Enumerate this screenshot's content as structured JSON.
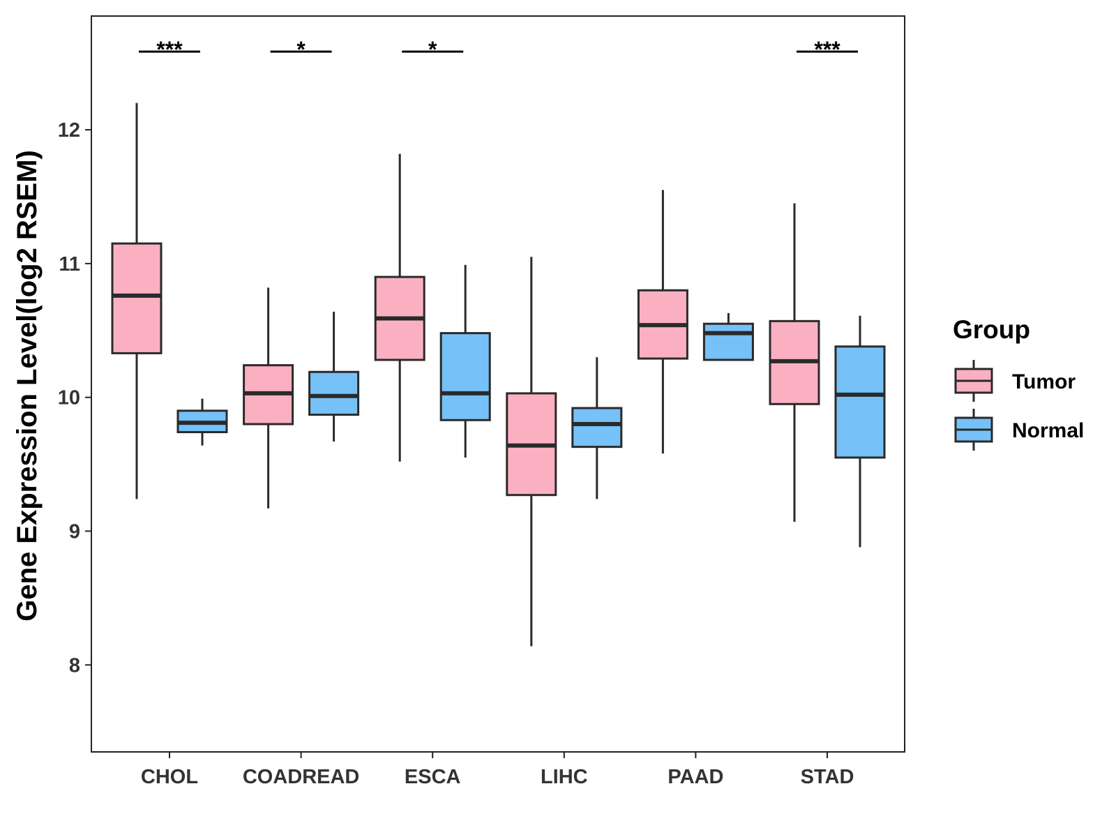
{
  "chart_data": {
    "type": "boxplot",
    "title": "",
    "xlabel": "",
    "ylabel": "Gene Expression Level(log2 RSEM)",
    "ylim": [
      7.35,
      12.85
    ],
    "yticks": [
      8,
      9,
      10,
      11,
      12
    ],
    "categories": [
      "CHOL",
      "COADREAD",
      "ESCA",
      "LIHC",
      "PAAD",
      "STAD"
    ],
    "legend": {
      "title": "Group",
      "position": "right",
      "items": [
        {
          "name": "Tumor",
          "color": "#FBB0C2"
        },
        {
          "name": "Normal",
          "color": "#76C1F8"
        }
      ]
    },
    "series": [
      {
        "name": "Tumor",
        "color": "#FBB0C2",
        "boxes": [
          {
            "min": 9.24,
            "q1": 10.33,
            "median": 10.76,
            "q3": 11.15,
            "max": 12.2
          },
          {
            "min": 9.17,
            "q1": 9.8,
            "median": 10.03,
            "q3": 10.24,
            "max": 10.82
          },
          {
            "min": 9.52,
            "q1": 10.28,
            "median": 10.59,
            "q3": 10.9,
            "max": 11.82
          },
          {
            "min": 8.14,
            "q1": 9.27,
            "median": 9.64,
            "q3": 10.03,
            "max": 11.05
          },
          {
            "min": 9.58,
            "q1": 10.29,
            "median": 10.54,
            "q3": 10.8,
            "max": 11.55
          },
          {
            "min": 9.07,
            "q1": 9.95,
            "median": 10.27,
            "q3": 10.57,
            "max": 11.45
          }
        ]
      },
      {
        "name": "Normal",
        "color": "#76C1F8",
        "boxes": [
          {
            "min": 9.64,
            "q1": 9.74,
            "median": 9.81,
            "q3": 9.9,
            "max": 9.99
          },
          {
            "min": 9.67,
            "q1": 9.87,
            "median": 10.01,
            "q3": 10.19,
            "max": 10.64
          },
          {
            "min": 9.55,
            "q1": 9.83,
            "median": 10.03,
            "q3": 10.48,
            "max": 10.99
          },
          {
            "min": 9.24,
            "q1": 9.63,
            "median": 9.8,
            "q3": 9.92,
            "max": 10.3
          },
          {
            "min": 10.28,
            "q1": 10.28,
            "median": 10.48,
            "q3": 10.55,
            "max": 10.63
          },
          {
            "min": 8.88,
            "q1": 9.55,
            "median": 10.02,
            "q3": 10.38,
            "max": 10.61
          }
        ]
      }
    ],
    "significance": [
      {
        "category": "CHOL",
        "label": "***"
      },
      {
        "category": "COADREAD",
        "label": "*"
      },
      {
        "category": "ESCA",
        "label": "*"
      },
      {
        "category": "STAD",
        "label": "***"
      }
    ]
  }
}
